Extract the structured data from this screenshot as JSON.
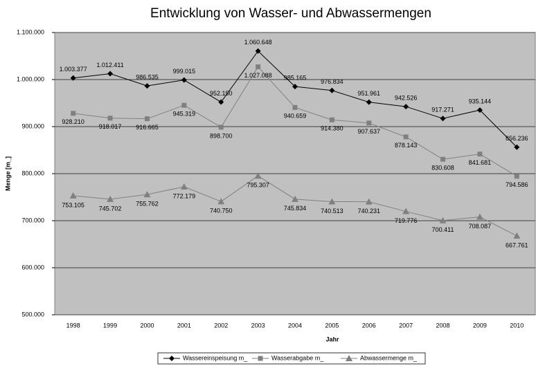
{
  "chart_data": {
    "type": "line",
    "title": "Entwicklung von Wasser- und Abwassermengen",
    "x_label": "Jahr",
    "y_label": "Menge [m_]",
    "categories": [
      "1998",
      "1999",
      "2000",
      "2001",
      "2002",
      "2003",
      "2004",
      "2005",
      "2006",
      "2007",
      "2008",
      "2009",
      "2010"
    ],
    "ylim": [
      500000,
      1100000
    ],
    "yticks": [
      {
        "value": 500000,
        "label": "500.000"
      },
      {
        "value": 600000,
        "label": "600.000"
      },
      {
        "value": 700000,
        "label": "700.000"
      },
      {
        "value": 800000,
        "label": "800.000"
      },
      {
        "value": 900000,
        "label": "900.000"
      },
      {
        "value": 1000000,
        "label": "1.000.000"
      },
      {
        "value": 1100000,
        "label": "1.100.000"
      }
    ],
    "grid": true,
    "legend": "bottom",
    "series": [
      {
        "name": "Wassereinspeisung m_",
        "color": "#000000",
        "marker": "diamond",
        "values": [
          1003377,
          1012411,
          986535,
          999015,
          952150,
          1060648,
          985165,
          976834,
          951961,
          942526,
          917271,
          935144,
          856236
        ],
        "value_labels": [
          "1.003.377",
          "1.012.411",
          "986.535",
          "999.015",
          "952.150",
          "1.060.648",
          "985.165",
          "976.834",
          "951.961",
          "942.526",
          "917.271",
          "935.144",
          "856.236"
        ]
      },
      {
        "name": "Wasserabgabe m_",
        "color": "#808080",
        "marker": "square",
        "values": [
          928210,
          918017,
          916665,
          945319,
          898700,
          1027088,
          940659,
          914380,
          907637,
          878143,
          830608,
          841681,
          794586
        ],
        "value_labels": [
          "928.210",
          "918.017",
          "916.665",
          "945.319",
          "898.700",
          "1.027.088",
          "940.659",
          "914.380",
          "907.637",
          "878.143",
          "830.608",
          "841.681",
          "794.586"
        ]
      },
      {
        "name": "Abwassermenge m_",
        "color": "#808080",
        "marker": "triangle",
        "values": [
          753105,
          745702,
          755762,
          772179,
          740750,
          795307,
          745834,
          740513,
          740231,
          719776,
          700411,
          708087,
          667761
        ],
        "value_labels": [
          "753.105",
          "745.702",
          "755.762",
          "772.179",
          "740.750",
          "795.307",
          "745.834",
          "740.513",
          "740.231",
          "719.776",
          "700.411",
          "708.087",
          "667.761"
        ]
      }
    ]
  }
}
